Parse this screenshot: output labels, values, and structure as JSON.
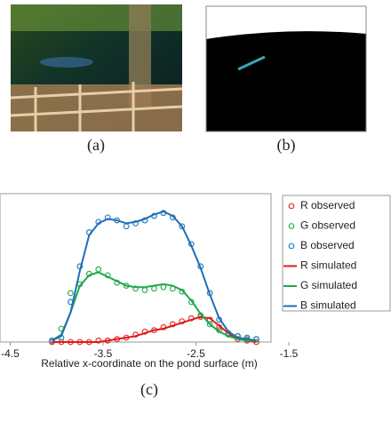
{
  "panels": {
    "a": "(a)",
    "b": "(b)",
    "c": "(c)"
  },
  "chart_data": {
    "type": "line",
    "x_label": "Relative x-coordinate on the pond surface (m)",
    "xlim": [
      -4.61,
      -1.5
    ],
    "xticks": [
      -4.5,
      -3.5,
      -2.5,
      -1.5
    ],
    "ylim": [
      0,
      1
    ],
    "x": [
      -4.05,
      -3.95,
      -3.85,
      -3.75,
      -3.65,
      -3.55,
      -3.45,
      -3.35,
      -3.25,
      -3.15,
      -3.05,
      -2.95,
      -2.85,
      -2.75,
      -2.65,
      -2.55,
      -2.45,
      -2.35,
      -2.25,
      -2.15,
      -2.05,
      -1.95,
      -1.85
    ],
    "series": [
      {
        "name": "R observed",
        "color": "#e8322c",
        "style": "markers",
        "values": [
          0,
          0,
          0,
          0,
          0,
          0.01,
          0.01,
          0.02,
          0.03,
          0.05,
          0.07,
          0.08,
          0.1,
          0.12,
          0.14,
          0.16,
          0.17,
          0.15,
          0.1,
          0.05,
          0.02,
          0.01,
          0
        ]
      },
      {
        "name": "G observed",
        "color": "#2fae5a",
        "style": "markers",
        "values": [
          0.01,
          0.09,
          0.33,
          0.39,
          0.46,
          0.49,
          0.45,
          0.4,
          0.38,
          0.36,
          0.35,
          0.36,
          0.37,
          0.36,
          0.34,
          0.27,
          0.18,
          0.12,
          0.08,
          0.05,
          0.04,
          0.02,
          0.02
        ]
      },
      {
        "name": "B observed",
        "color": "#2a7fc0",
        "style": "markers",
        "values": [
          0.01,
          0.03,
          0.27,
          0.51,
          0.74,
          0.81,
          0.84,
          0.82,
          0.78,
          0.8,
          0.82,
          0.85,
          0.87,
          0.84,
          0.78,
          0.66,
          0.51,
          0.33,
          0.15,
          0.06,
          0.04,
          0.03,
          0.02
        ]
      },
      {
        "name": "R simulated",
        "color": "#e01b1b",
        "style": "line",
        "values": [
          0,
          0,
          0,
          0,
          0,
          0,
          0.01,
          0.02,
          0.03,
          0.04,
          0.06,
          0.08,
          0.09,
          0.11,
          0.13,
          0.15,
          0.17,
          0.16,
          0.11,
          0.06,
          0.02,
          0.01,
          0
        ]
      },
      {
        "name": "G simulated",
        "color": "#1fa84a",
        "style": "line",
        "values": [
          0.01,
          0.05,
          0.2,
          0.38,
          0.45,
          0.47,
          0.44,
          0.41,
          0.38,
          0.37,
          0.37,
          0.38,
          0.39,
          0.38,
          0.35,
          0.28,
          0.19,
          0.12,
          0.07,
          0.04,
          0.02,
          0.01,
          0.01
        ]
      },
      {
        "name": "B simulated",
        "color": "#1f6fb5",
        "style": "line",
        "values": [
          0.01,
          0.04,
          0.2,
          0.48,
          0.72,
          0.8,
          0.83,
          0.82,
          0.8,
          0.81,
          0.83,
          0.86,
          0.88,
          0.85,
          0.78,
          0.65,
          0.5,
          0.32,
          0.16,
          0.07,
          0.03,
          0.02,
          0.01
        ]
      }
    ]
  }
}
